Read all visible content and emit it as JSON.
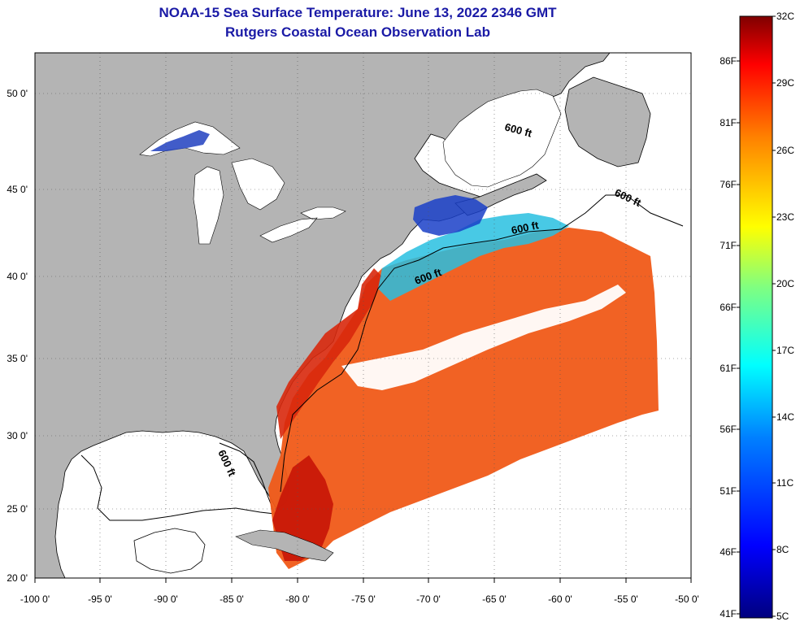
{
  "title_line1": "NOAA-15 Sea Surface Temperature:  June 13, 2022 2346 GMT",
  "title_line2": "Rutgers Coastal Ocean Observation Lab",
  "lat_labels": [
    "50 0'",
    "45 0'",
    "40 0'",
    "35 0'",
    "30 0'",
    "25 0'",
    "20 0'"
  ],
  "lon_labels": [
    "-100 0'",
    "-95 0'",
    "-90 0'",
    "-85 0'",
    "-80 0'",
    "-75 0'",
    "-70 0'",
    "-65 0'",
    "-60 0'",
    "-55 0'",
    "-50 0'"
  ],
  "contour_labels": [
    "600 ft",
    "600 ft",
    "600 ft",
    "600 ft",
    "600 ft"
  ],
  "colorbar": {
    "fahrenheit_labels": [
      "86F",
      "81F",
      "76F",
      "71F",
      "66F",
      "61F",
      "56F",
      "51F",
      "46F",
      "41F"
    ],
    "celsius_labels": [
      "32C",
      "29C",
      "26C",
      "23C",
      "20C",
      "17C",
      "14C",
      "11C",
      "8C",
      "5C"
    ]
  },
  "colors": {
    "land": "#b4b4b4",
    "title": "#1a1aa6",
    "warm_water": "#f05014",
    "hot_water": "#cc1a0a",
    "cool_water": "#20c8d8",
    "cold_water": "#1a3cc8"
  }
}
